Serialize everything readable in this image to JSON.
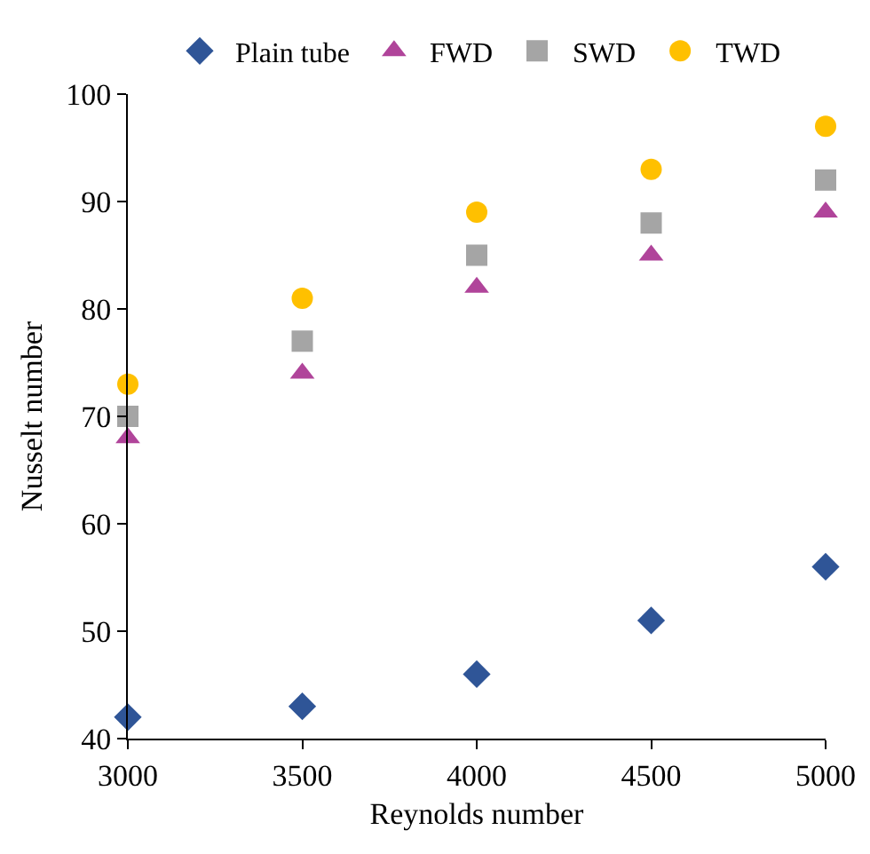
{
  "chart_data": {
    "type": "scatter",
    "xlabel": "Reynolds number",
    "ylabel": "Nusselt number",
    "x": [
      3000,
      3500,
      4000,
      4500,
      5000
    ],
    "series": [
      {
        "name": "Plain tube",
        "color": "#2f5597",
        "marker": "diamond",
        "values": [
          42,
          43,
          46,
          51,
          56
        ]
      },
      {
        "name": "FWD",
        "color": "#b0449a",
        "marker": "triangle",
        "values": [
          68,
          74,
          82,
          85,
          89
        ]
      },
      {
        "name": "SWD",
        "color": "#a5a5a5",
        "marker": "square",
        "values": [
          70,
          77,
          85,
          88,
          92
        ]
      },
      {
        "name": "TWD",
        "color": "#ffc000",
        "marker": "circle",
        "values": [
          73,
          81,
          89,
          93,
          97
        ]
      }
    ],
    "xlim": [
      3000,
      5000
    ],
    "xticks": [
      3000,
      3500,
      4000,
      4500,
      5000
    ],
    "ylim": [
      40,
      100
    ],
    "yticks": [
      40,
      50,
      60,
      70,
      80,
      90,
      100
    ],
    "grid": false,
    "legend": "top"
  }
}
